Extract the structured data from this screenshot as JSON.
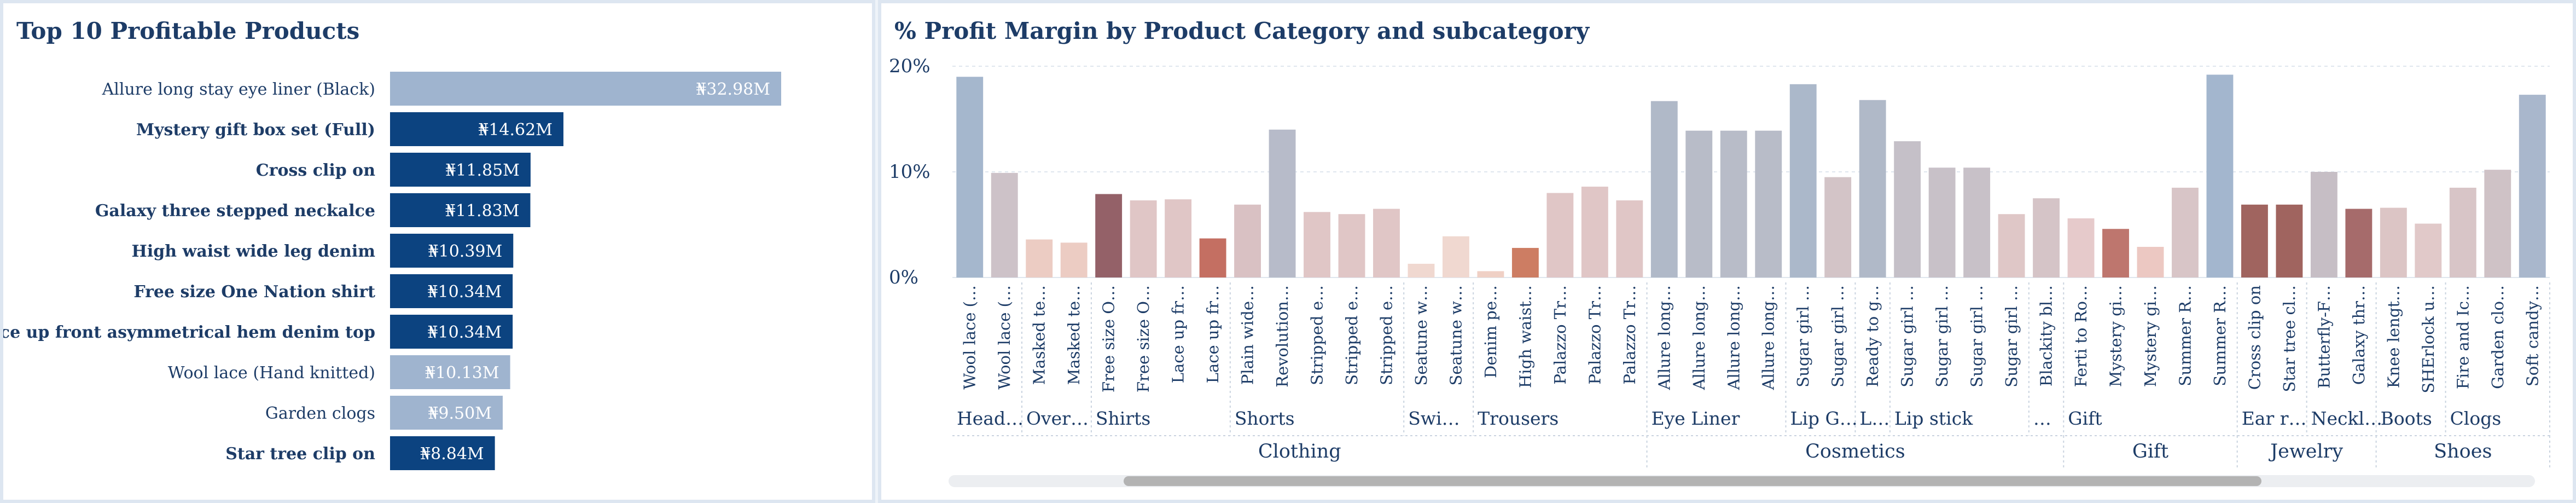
{
  "colors": {
    "title": "#1d3c67",
    "bar_dark": "#0c4380",
    "bar_light": "#9fb4cf",
    "axis_text": "#1d3c67",
    "grid": "#dfe6ee"
  },
  "left_title": "Top 10 Profitable Products",
  "right_title": "% Profit Margin by Product Category and subcategory",
  "top10": [
    {
      "name": "Allure long stay eye liner (Black)",
      "value": 32.98,
      "label": "₦32.98M",
      "highlight": false
    },
    {
      "name": "Mystery gift box set (Full)",
      "value": 14.62,
      "label": "₦14.62M",
      "highlight": true
    },
    {
      "name": "Cross clip on",
      "value": 11.85,
      "label": "₦11.85M",
      "highlight": true
    },
    {
      "name": "Galaxy three stepped neckalce",
      "value": 11.83,
      "label": "₦11.83M",
      "highlight": true
    },
    {
      "name": "High waist wide leg denim",
      "value": 10.39,
      "label": "₦10.39M",
      "highlight": true
    },
    {
      "name": "Free size One Nation shirt",
      "value": 10.34,
      "label": "₦10.34M",
      "highlight": true
    },
    {
      "name": "Lace up front asymmetrical hem denim top",
      "value": 10.34,
      "label": "₦10.34M",
      "highlight": true
    },
    {
      "name": "Wool lace (Hand knitted)",
      "value": 10.13,
      "label": "₦10.13M",
      "highlight": false
    },
    {
      "name": "Garden clogs",
      "value": 9.5,
      "label": "₦9.50M",
      "highlight": false
    },
    {
      "name": "Star tree clip on",
      "value": 8.84,
      "label": "₦8.84M",
      "highlight": true
    }
  ],
  "chart_data": {
    "type": "bar",
    "yticks": [
      "20%",
      "10%",
      "0%"
    ],
    "ylim": [
      0,
      20
    ],
    "categories": [
      "Wool lace (…",
      "Wool lace (…",
      "Masked te…",
      "Masked te…",
      "Free size O…",
      "Free size O…",
      "Lace up fr…",
      "Lace up fr…",
      "Plain wide…",
      "Revolution…",
      "Stripped e…",
      "Stripped e…",
      "Stripped e…",
      "Seatune w…",
      "Seatune w…",
      "Denim pe…",
      "High waist…",
      "Palazzo Tr…",
      "Palazzo Tr…",
      "Palazzo Tr…",
      "Allure long…",
      "Allure long…",
      "Allure long…",
      "Allure long…",
      "Sugar girl …",
      "Sugar girl …",
      "Ready to g…",
      "Sugar girl …",
      "Sugar girl …",
      "Sugar girl …",
      "Sugar girl …",
      "Blackity bl…",
      "Ferti to Ro…",
      "Mystery gi…",
      "Mystery gi…",
      "Summer R…",
      "Summer R…",
      "Cross clip on",
      "Star tree cl…",
      "Butterfly-F…",
      "Galaxy thr…",
      "Knee lengt…",
      "SHErlock u…",
      "Fire and Ic…",
      "Garden clo…",
      "Soft candy…"
    ],
    "values": [
      19.0,
      9.9,
      3.6,
      3.3,
      7.9,
      7.3,
      7.4,
      3.7,
      6.9,
      14.0,
      6.2,
      6.0,
      6.5,
      1.3,
      3.9,
      0.6,
      2.8,
      8.0,
      8.6,
      7.3,
      16.7,
      13.9,
      13.9,
      13.9,
      18.3,
      9.5,
      16.8,
      12.9,
      10.4,
      10.4,
      6.0,
      7.5,
      5.6,
      4.6,
      2.9,
      8.5,
      19.2,
      6.9,
      6.9,
      10.0,
      6.5,
      6.6,
      5.1,
      8.5,
      10.2,
      17.3
    ],
    "colors": [
      "#a5b7cd",
      "#cdc2c8",
      "#ecccc3",
      "#ecccc3",
      "#946168",
      "#e0c6c6",
      "#e0c6c6",
      "#c46f62",
      "#d9c1c3",
      "#b7bbc9",
      "#e0c6c6",
      "#e0c6c6",
      "#e0c6c6",
      "#f0d8d0",
      "#f0d8d0",
      "#efd0c5",
      "#cd7d63",
      "#e0c6c6",
      "#e0c6c6",
      "#e0c6c6",
      "#b0b9c8",
      "#b8bcc8",
      "#b8bcc8",
      "#b8bcc8",
      "#abb8ca",
      "#d3c4c7",
      "#b0b9c8",
      "#c5c0c8",
      "#c8c1c8",
      "#c8c1c8",
      "#dfc7c7",
      "#d5c4c7",
      "#e6cacb",
      "#be766e",
      "#ecc8c2",
      "#d8c5c7",
      "#a3b6ce",
      "#a0645f",
      "#a0645f",
      "#c6bec5",
      "#a66b6b",
      "#dcc5c5",
      "#e1c9c9",
      "#d8c5c7",
      "#cfc2c6",
      "#a9b7cc"
    ],
    "subcategories": [
      {
        "name": "Head…",
        "count": 2
      },
      {
        "name": "Over…",
        "count": 2
      },
      {
        "name": "Shirts",
        "count": 4
      },
      {
        "name": "Shorts",
        "count": 5
      },
      {
        "name": "Swi…",
        "count": 2
      },
      {
        "name": "Trousers",
        "count": 5
      },
      {
        "name": "Eye Liner",
        "count": 4
      },
      {
        "name": "Lip G…",
        "count": 2
      },
      {
        "name": "L…",
        "count": 1
      },
      {
        "name": "Lip stick",
        "count": 4
      },
      {
        "name": "…",
        "count": 1
      },
      {
        "name": "Gift",
        "count": 5
      },
      {
        "name": "Ear r…",
        "count": 2
      },
      {
        "name": "Neckl…",
        "count": 2
      },
      {
        "name": "Boots",
        "count": 2
      },
      {
        "name": "Clogs",
        "count": 3
      }
    ],
    "categories_top": [
      {
        "name": "Clothing",
        "count": 20
      },
      {
        "name": "Cosmetics",
        "count": 12
      },
      {
        "name": "Gift",
        "count": 5
      },
      {
        "name": "Jewelry",
        "count": 4
      },
      {
        "name": "Shoes",
        "count": 5
      }
    ]
  }
}
